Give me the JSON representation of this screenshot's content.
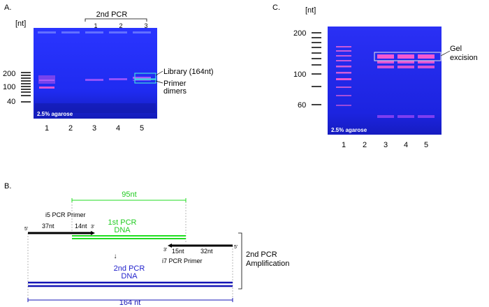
{
  "panel_a": {
    "label": "A.",
    "unit": "[nt]",
    "header": "2nd PCR",
    "sub_lanes": [
      "1",
      "2",
      "3"
    ],
    "ladder_ticks": [
      "200",
      "100",
      "40"
    ],
    "agarose": "2.5% agarose",
    "lanes": [
      "1",
      "2",
      "3",
      "4",
      "5"
    ],
    "annotation_library": "Library (164nt)",
    "annotation_primer_1": "Primer",
    "annotation_primer_2": "dimers"
  },
  "panel_b": {
    "label": "B.",
    "len_95": "95nt",
    "i5_primer": "i5 PCR  Primer",
    "len_37": "37nt",
    "len_14": "14nt",
    "five_prime": "5'",
    "three_prime": "3'",
    "first_pcr_1": "1st PCR",
    "first_pcr_2": "DNA",
    "len_15": "15nt",
    "len_32": "32nt",
    "i7_primer": "i7 PCR Primer",
    "arrow_down": "↓",
    "second_pcr_1": "2nd PCR",
    "second_pcr_2": "DNA",
    "amplification_1": "2nd PCR",
    "amplification_2": "Amplification",
    "len_164": "164 nt"
  },
  "panel_c": {
    "label": "C.",
    "unit": "[nt]",
    "ladder_ticks": [
      "200",
      "100",
      "60"
    ],
    "agarose": "2.5% agarose",
    "lanes": [
      "1",
      "2",
      "3",
      "4",
      "5"
    ],
    "annotation_1": "Gel",
    "annotation_2": "excision"
  },
  "colors": {
    "gel_blue": "#1f2df0",
    "gel_blue_dark": "#1620c8",
    "band_pink": "#ff5cd0",
    "green": "#22dd22",
    "navy": "#1515b5",
    "annotation_box": "#44dddd"
  }
}
